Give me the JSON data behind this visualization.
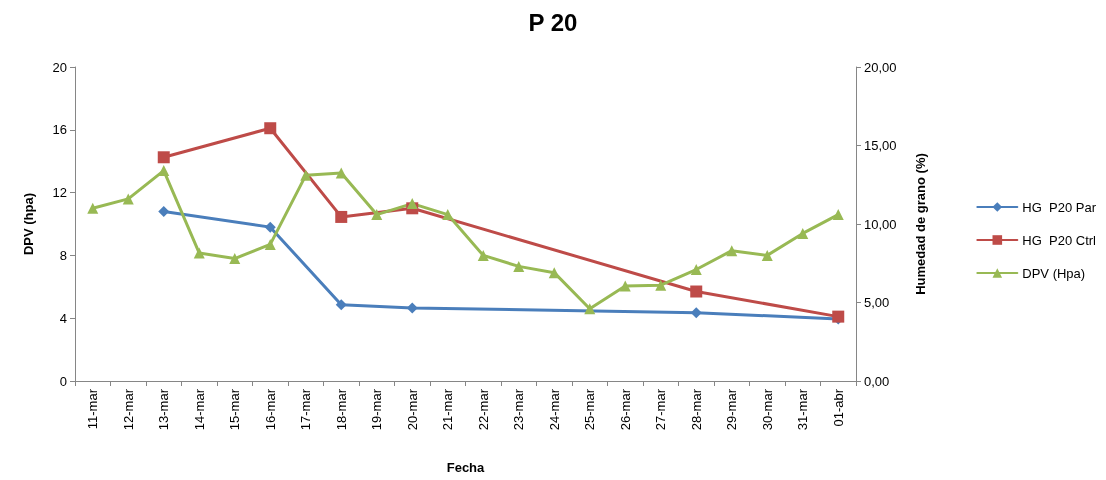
{
  "chart_data": {
    "type": "line",
    "title": "P 20",
    "xlabel": "Fecha",
    "ylabel": "DPV (hpa)",
    "y2label": "Humedad de grano (%)",
    "categories": [
      "11-mar",
      "12-mar",
      "13-mar",
      "14-mar",
      "15-mar",
      "16-mar",
      "17-mar",
      "18-mar",
      "19-mar",
      "20-mar",
      "21-mar",
      "22-mar",
      "23-mar",
      "24-mar",
      "25-mar",
      "26-mar",
      "27-mar",
      "28-mar",
      "29-mar",
      "30-mar",
      "31-mar",
      "01-abr"
    ],
    "series": [
      {
        "name": "HG  P20 Par",
        "color": "#4a7ebb",
        "marker": "diamond",
        "values": [
          null,
          null,
          10.8,
          null,
          null,
          9.8,
          null,
          4.85,
          null,
          4.65,
          null,
          null,
          null,
          null,
          null,
          null,
          null,
          4.35,
          null,
          null,
          null,
          3.95
        ]
      },
      {
        "name": "HG  P20 Ctrl",
        "color": "#be4b48",
        "marker": "square",
        "values": [
          null,
          null,
          14.25,
          null,
          null,
          16.1,
          null,
          10.45,
          null,
          11.0,
          null,
          null,
          null,
          null,
          null,
          null,
          null,
          5.7,
          null,
          null,
          null,
          4.1
        ]
      },
      {
        "name": "DPV (Hpa)",
        "color": "#98b954",
        "marker": "triangle",
        "values": [
          11.0,
          11.6,
          13.4,
          8.15,
          7.8,
          8.7,
          13.1,
          13.25,
          10.6,
          11.3,
          10.6,
          8.0,
          7.3,
          6.9,
          4.6,
          6.05,
          6.1,
          7.1,
          8.3,
          8.0,
          9.4,
          10.6
        ]
      }
    ],
    "ylim": [
      0,
      20
    ],
    "yticks": [
      0,
      4,
      8,
      12,
      16,
      20
    ],
    "y2lim": [
      0,
      20
    ],
    "y2ticks": [
      {
        "value": 0,
        "label": "0,00"
      },
      {
        "value": 5,
        "label": "5,00"
      },
      {
        "value": 10,
        "label": "10,00"
      },
      {
        "value": 15,
        "label": "15,00"
      },
      {
        "value": 20,
        "label": "20,00"
      }
    ],
    "grid": false,
    "legend": "right",
    "line_style": "solid"
  }
}
